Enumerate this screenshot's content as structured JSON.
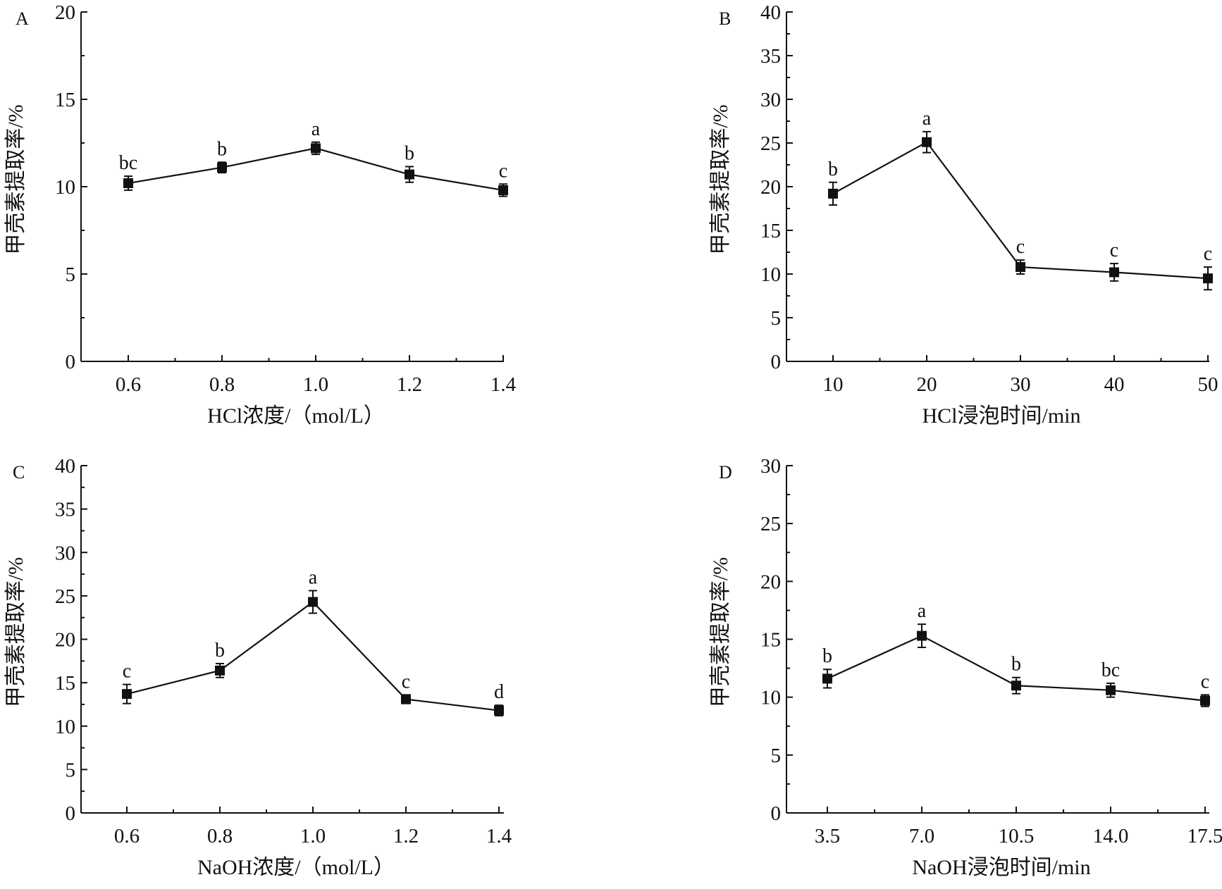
{
  "chart_data": [
    {
      "type": "line",
      "panel_label": "A",
      "xlabel": "HCl浓度/（mol/L）",
      "ylabel": "甲壳素提取率/%",
      "ylim": [
        0,
        20
      ],
      "yticks": [
        "0",
        "5",
        "10",
        "15",
        "20"
      ],
      "categories": [
        "0.6",
        "0.8",
        "1.0",
        "1.2",
        "1.4"
      ],
      "series": [
        {
          "values": [
            10.2,
            11.1,
            12.2,
            10.7,
            9.8
          ],
          "errors": [
            0.4,
            0.3,
            0.35,
            0.45,
            0.35
          ],
          "significance": [
            "bc",
            "b",
            "a",
            "b",
            "c"
          ]
        }
      ]
    },
    {
      "type": "line",
      "panel_label": "B",
      "xlabel": "HCl浸泡时间/min",
      "ylabel": "甲壳素提取率/%",
      "ylim": [
        0,
        40
      ],
      "yticks": [
        "0",
        "5",
        "10",
        "15",
        "20",
        "25",
        "30",
        "35",
        "40"
      ],
      "categories": [
        "10",
        "20",
        "30",
        "40",
        "50"
      ],
      "series": [
        {
          "values": [
            19.2,
            25.1,
            10.8,
            10.2,
            9.5
          ],
          "errors": [
            1.3,
            1.2,
            0.8,
            1.0,
            1.3
          ],
          "significance": [
            "b",
            "a",
            "c",
            "c",
            "c"
          ]
        }
      ]
    },
    {
      "type": "line",
      "panel_label": "C",
      "xlabel": "NaOH浓度/（mol/L）",
      "ylabel": "甲壳素提取率/%",
      "ylim": [
        0,
        40
      ],
      "yticks": [
        "0",
        "5",
        "10",
        "15",
        "20",
        "25",
        "30",
        "35",
        "40"
      ],
      "categories": [
        "0.6",
        "0.8",
        "1.0",
        "1.2",
        "1.4"
      ],
      "series": [
        {
          "values": [
            13.7,
            16.4,
            24.3,
            13.1,
            11.8
          ],
          "errors": [
            1.1,
            0.8,
            1.3,
            0.5,
            0.6
          ],
          "significance": [
            "c",
            "b",
            "a",
            "c",
            "d"
          ]
        }
      ]
    },
    {
      "type": "line",
      "panel_label": "D",
      "xlabel": "NaOH浸泡时间/min",
      "ylabel": "甲壳素提取率/%",
      "ylim": [
        0,
        30
      ],
      "yticks": [
        "0",
        "5",
        "10",
        "15",
        "20",
        "25",
        "30"
      ],
      "categories": [
        "3.5",
        "7.0",
        "10.5",
        "14.0",
        "17.5"
      ],
      "series": [
        {
          "values": [
            11.6,
            15.3,
            11.0,
            10.6,
            9.7
          ],
          "errors": [
            0.8,
            1.0,
            0.7,
            0.6,
            0.5
          ],
          "significance": [
            "b",
            "a",
            "b",
            "bc",
            "c"
          ]
        }
      ]
    }
  ]
}
